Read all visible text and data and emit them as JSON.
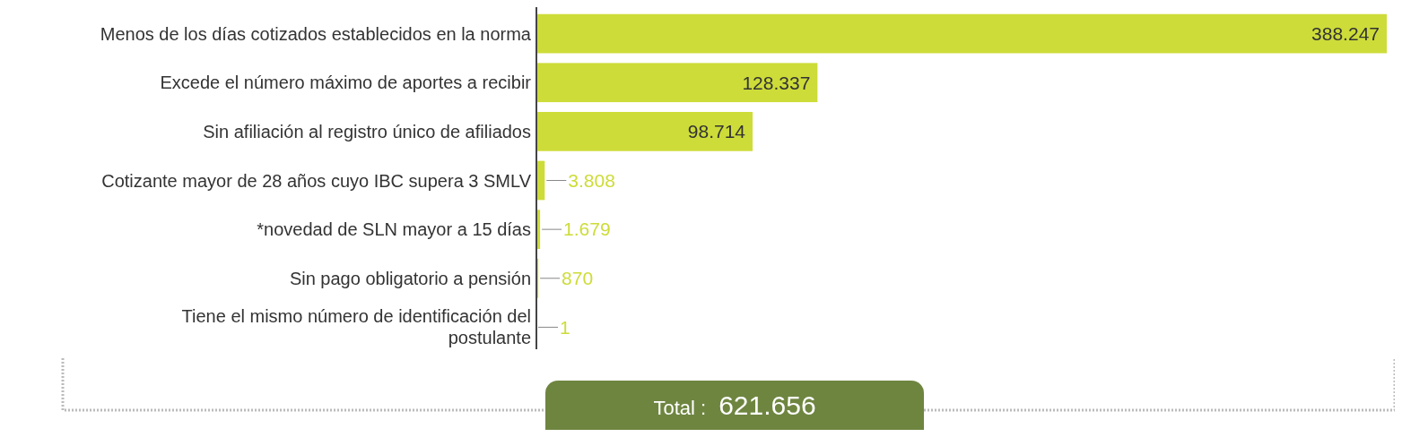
{
  "chart_data": {
    "type": "bar",
    "orientation": "horizontal",
    "categories": [
      "Menos de los días cotizados establecidos en la norma",
      "Excede el número máximo de aportes a recibir",
      "Sin afiliación al registro único de afiliados",
      "Cotizante mayor de 28 años cuyo IBC supera 3 SMLV",
      "*novedad de SLN mayor a 15 días",
      "Sin pago obligatorio a pensión",
      "Tiene el mismo número de identificación del postulante"
    ],
    "values": [
      388247,
      128337,
      98714,
      3808,
      1679,
      870,
      1
    ],
    "value_labels": [
      "388.247",
      "128.337",
      "98.714",
      "3.808",
      "1.679",
      "870",
      "1"
    ],
    "color": "#cddc39",
    "annotations": [
      "Total :",
      "621.656"
    ]
  }
}
